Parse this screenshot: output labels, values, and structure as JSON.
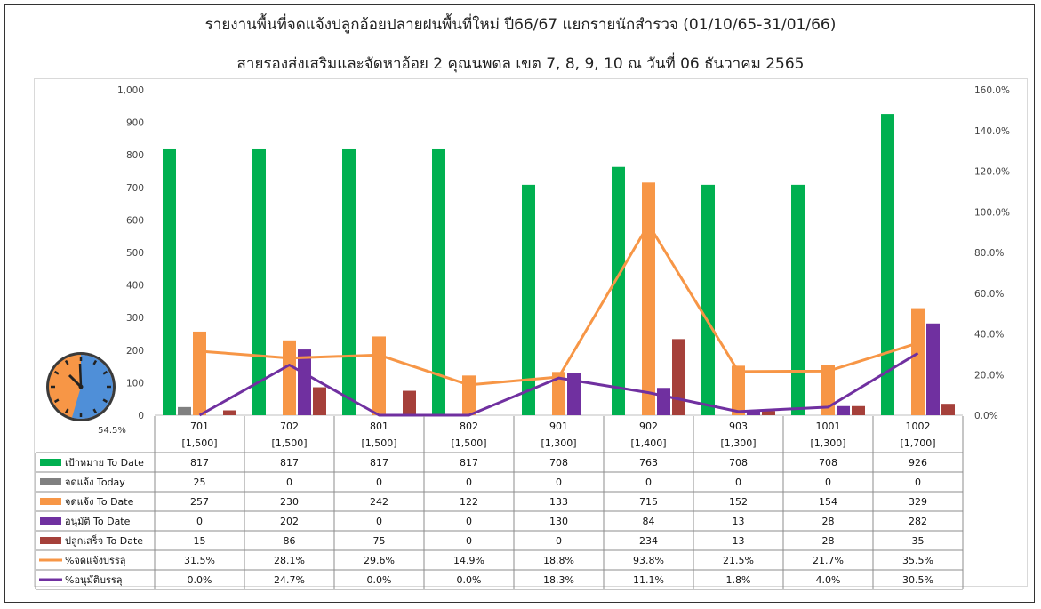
{
  "header": {
    "title_line1": "รายงานพื้นที่จดแจ้งปลูกอ้อยปลายฝนพื้นที่ใหม่ ปี66/67 แยกรายนักสำรวจ (01/10/65-31/01/66)",
    "title_line2": "สายรองส่งเสริมและจัดหาอ้อย 2 คุณนพดล เขต 7, 8, 9, 10 ณ วันที่ 06 ธันวาคม 2565"
  },
  "clock": {
    "label": "54.5%",
    "value": 0.545,
    "fill_color": "#4f8fd8",
    "rest_color": "#f79646"
  },
  "chart_data": {
    "type": "bar",
    "categories": [
      "701",
      "702",
      "801",
      "802",
      "901",
      "902",
      "903",
      "1001",
      "1002"
    ],
    "category_sublabels": [
      "[1,500]",
      "[1,500]",
      "[1,500]",
      "[1,500]",
      "[1,300]",
      "[1,400]",
      "[1,300]",
      "[1,300]",
      "[1,700]"
    ],
    "left_axis": {
      "ticks": [
        "0",
        "100",
        "200",
        "300",
        "400",
        "500",
        "600",
        "700",
        "800",
        "900",
        "1,000"
      ],
      "ylim": [
        0,
        1000
      ]
    },
    "right_axis": {
      "ticks": [
        "0.0%",
        "20.0%",
        "40.0%",
        "60.0%",
        "80.0%",
        "100.0%",
        "120.0%",
        "140.0%",
        "160.0%"
      ],
      "ylim": [
        0,
        160
      ]
    },
    "bar_series": [
      {
        "name": "เป้าหมาย To Date",
        "color": "#00b050",
        "values": [
          817,
          817,
          817,
          817,
          708,
          763,
          708,
          708,
          926
        ]
      },
      {
        "name": "จดแจ้ง Today",
        "color": "#808080",
        "values": [
          25,
          0,
          0,
          0,
          0,
          0,
          0,
          0,
          0
        ]
      },
      {
        "name": "จดแจ้ง To Date",
        "color": "#f79646",
        "values": [
          257,
          230,
          242,
          122,
          133,
          715,
          152,
          154,
          329
        ]
      },
      {
        "name": "อนุมัติ To Date",
        "color": "#7030a0",
        "values": [
          0,
          202,
          0,
          0,
          130,
          84,
          13,
          28,
          282
        ]
      },
      {
        "name": "ปลูกเสร็จ To Date",
        "color": "#a5403a",
        "values": [
          15,
          86,
          75,
          0,
          0,
          234,
          13,
          28,
          35
        ]
      }
    ],
    "line_series": [
      {
        "name": "%จดแจ้งบรรลุ",
        "color": "#f79646",
        "values": [
          31.5,
          28.1,
          29.6,
          14.9,
          18.8,
          93.8,
          21.5,
          21.7,
          35.5
        ],
        "labels": [
          "31.5%",
          "28.1%",
          "29.6%",
          "14.9%",
          "18.8%",
          "93.8%",
          "21.5%",
          "21.7%",
          "35.5%"
        ]
      },
      {
        "name": "%อนุมัติบรรลุ",
        "color": "#7030a0",
        "values": [
          0.0,
          24.7,
          0.0,
          0.0,
          18.3,
          11.1,
          1.8,
          4.0,
          30.5
        ],
        "labels": [
          "0.0%",
          "24.7%",
          "0.0%",
          "0.0%",
          "18.3%",
          "11.1%",
          "1.8%",
          "4.0%",
          "30.5%"
        ]
      }
    ],
    "data_table": true,
    "grid": false
  }
}
